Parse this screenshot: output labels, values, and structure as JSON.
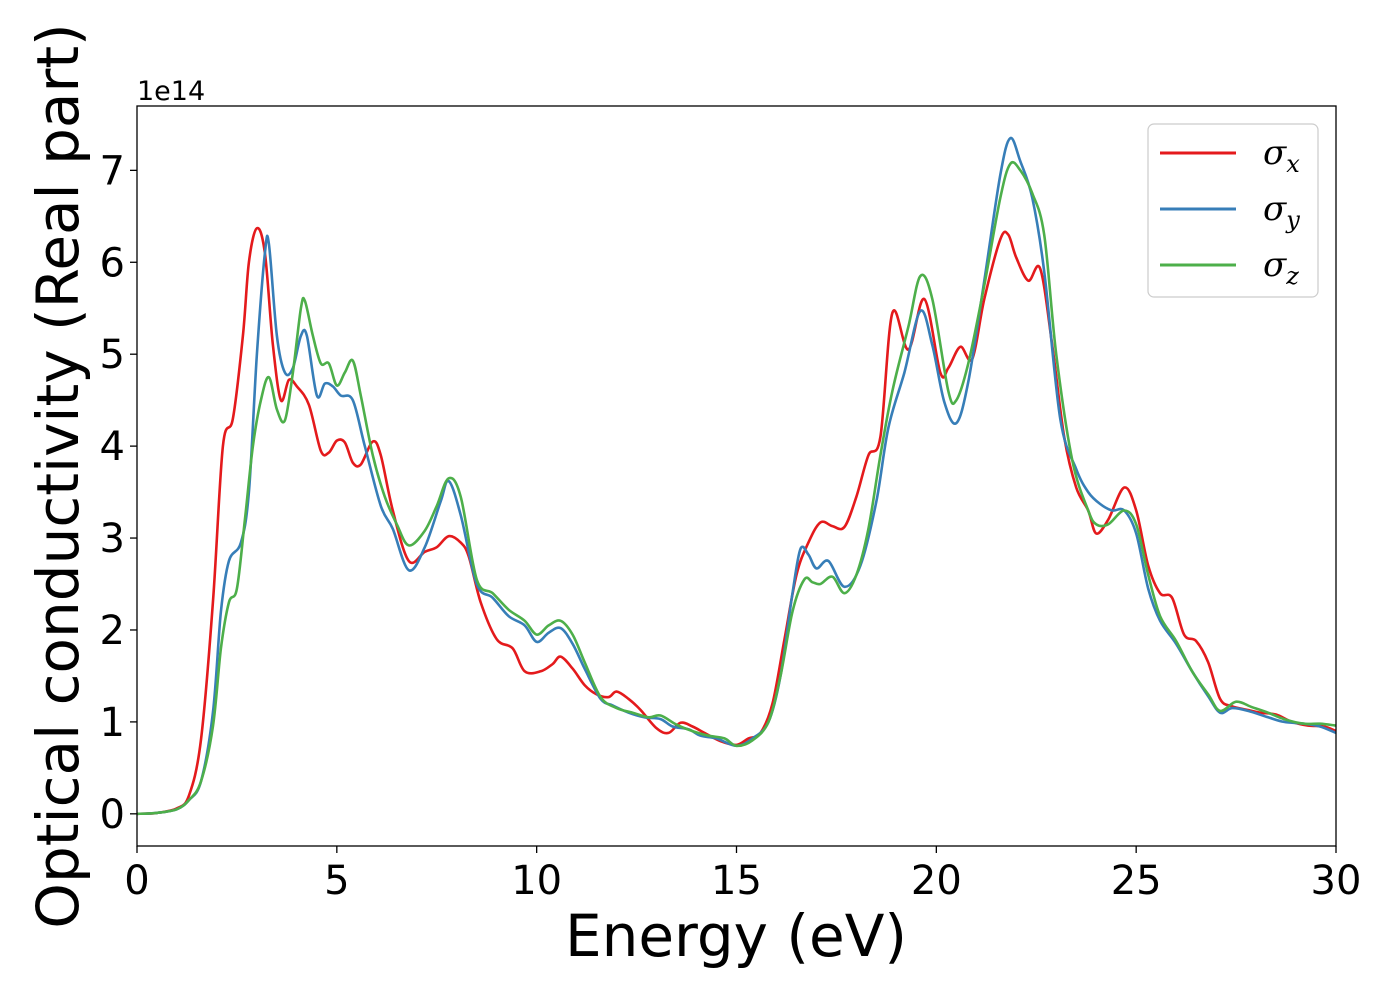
{
  "chart_data": {
    "type": "line",
    "xlabel": "Energy (eV)",
    "ylabel": "Optical conductivity (Real part)",
    "offset_text": "1e14",
    "xlim": [
      0,
      30
    ],
    "ylim": [
      -0.35,
      7.7
    ],
    "xticks": [
      0,
      5,
      10,
      15,
      20,
      25,
      30
    ],
    "xtick_labels": [
      "0",
      "5",
      "10",
      "15",
      "20",
      "25",
      "30"
    ],
    "yticks": [
      0,
      1,
      2,
      3,
      4,
      5,
      6,
      7
    ],
    "ytick_labels": [
      "0",
      "1",
      "2",
      "3",
      "4",
      "5",
      "6",
      "7"
    ],
    "grid": false,
    "legend_position": "top-right",
    "series": [
      {
        "name": "σx",
        "symbol": "σ",
        "subscript": "x",
        "color": "#e41a1c",
        "points": [
          [
            0,
            0
          ],
          [
            0.5,
            0.01
          ],
          [
            1,
            0.06
          ],
          [
            1.3,
            0.2
          ],
          [
            1.6,
            0.8
          ],
          [
            1.9,
            2.3
          ],
          [
            2.15,
            4.0
          ],
          [
            2.4,
            4.3
          ],
          [
            2.65,
            5.2
          ],
          [
            2.8,
            6.0
          ],
          [
            3.0,
            6.37
          ],
          [
            3.2,
            6.1
          ],
          [
            3.4,
            5.1
          ],
          [
            3.6,
            4.5
          ],
          [
            3.8,
            4.72
          ],
          [
            4.0,
            4.65
          ],
          [
            4.3,
            4.45
          ],
          [
            4.6,
            3.95
          ],
          [
            4.8,
            3.93
          ],
          [
            5.0,
            4.06
          ],
          [
            5.2,
            4.04
          ],
          [
            5.4,
            3.82
          ],
          [
            5.6,
            3.8
          ],
          [
            5.9,
            4.05
          ],
          [
            6.1,
            3.9
          ],
          [
            6.4,
            3.3
          ],
          [
            6.8,
            2.75
          ],
          [
            7.2,
            2.85
          ],
          [
            7.5,
            2.9
          ],
          [
            7.8,
            3.02
          ],
          [
            8.1,
            2.95
          ],
          [
            8.3,
            2.8
          ],
          [
            8.6,
            2.3
          ],
          [
            9.0,
            1.9
          ],
          [
            9.4,
            1.8
          ],
          [
            9.7,
            1.55
          ],
          [
            10.1,
            1.55
          ],
          [
            10.4,
            1.63
          ],
          [
            10.6,
            1.71
          ],
          [
            10.9,
            1.58
          ],
          [
            11.2,
            1.4
          ],
          [
            11.5,
            1.3
          ],
          [
            11.8,
            1.27
          ],
          [
            12.0,
            1.33
          ],
          [
            12.3,
            1.25
          ],
          [
            12.6,
            1.13
          ],
          [
            13.0,
            0.93
          ],
          [
            13.3,
            0.88
          ],
          [
            13.6,
            0.99
          ],
          [
            13.9,
            0.95
          ],
          [
            14.2,
            0.88
          ],
          [
            14.6,
            0.79
          ],
          [
            15.0,
            0.75
          ],
          [
            15.3,
            0.82
          ],
          [
            15.6,
            0.88
          ],
          [
            15.9,
            1.2
          ],
          [
            16.2,
            1.9
          ],
          [
            16.5,
            2.6
          ],
          [
            16.8,
            2.95
          ],
          [
            17.1,
            3.17
          ],
          [
            17.4,
            3.13
          ],
          [
            17.7,
            3.12
          ],
          [
            18.0,
            3.45
          ],
          [
            18.3,
            3.9
          ],
          [
            18.6,
            4.1
          ],
          [
            18.9,
            5.45
          ],
          [
            19.3,
            5.05
          ],
          [
            19.7,
            5.6
          ],
          [
            20.1,
            4.8
          ],
          [
            20.3,
            4.85
          ],
          [
            20.6,
            5.08
          ],
          [
            20.9,
            4.95
          ],
          [
            21.2,
            5.6
          ],
          [
            21.6,
            6.25
          ],
          [
            21.8,
            6.3
          ],
          [
            22.0,
            6.05
          ],
          [
            22.3,
            5.8
          ],
          [
            22.6,
            5.93
          ],
          [
            22.9,
            5.1
          ],
          [
            23.2,
            4.1
          ],
          [
            23.5,
            3.55
          ],
          [
            23.8,
            3.3
          ],
          [
            24.0,
            3.05
          ],
          [
            24.3,
            3.2
          ],
          [
            24.7,
            3.55
          ],
          [
            25.0,
            3.3
          ],
          [
            25.3,
            2.7
          ],
          [
            25.6,
            2.4
          ],
          [
            25.9,
            2.35
          ],
          [
            26.2,
            1.95
          ],
          [
            26.5,
            1.88
          ],
          [
            26.8,
            1.65
          ],
          [
            27.1,
            1.25
          ],
          [
            27.4,
            1.17
          ],
          [
            27.8,
            1.13
          ],
          [
            28.1,
            1.1
          ],
          [
            28.5,
            1.08
          ],
          [
            28.9,
            1.0
          ],
          [
            29.3,
            0.96
          ],
          [
            29.7,
            0.95
          ],
          [
            30.0,
            0.9
          ]
        ]
      },
      {
        "name": "σy",
        "symbol": "σ",
        "subscript": "y",
        "color": "#377eb8",
        "points": [
          [
            0,
            0
          ],
          [
            0.5,
            0.01
          ],
          [
            1,
            0.05
          ],
          [
            1.3,
            0.15
          ],
          [
            1.6,
            0.35
          ],
          [
            1.9,
            1.1
          ],
          [
            2.1,
            2.2
          ],
          [
            2.3,
            2.75
          ],
          [
            2.6,
            2.95
          ],
          [
            2.8,
            3.5
          ],
          [
            3.0,
            5.0
          ],
          [
            3.2,
            6.1
          ],
          [
            3.3,
            6.2
          ],
          [
            3.5,
            5.2
          ],
          [
            3.7,
            4.8
          ],
          [
            3.9,
            4.85
          ],
          [
            4.1,
            5.2
          ],
          [
            4.25,
            5.2
          ],
          [
            4.5,
            4.55
          ],
          [
            4.7,
            4.68
          ],
          [
            4.9,
            4.65
          ],
          [
            5.1,
            4.55
          ],
          [
            5.4,
            4.5
          ],
          [
            5.7,
            4.0
          ],
          [
            6.1,
            3.35
          ],
          [
            6.4,
            3.1
          ],
          [
            6.8,
            2.65
          ],
          [
            7.2,
            2.9
          ],
          [
            7.6,
            3.4
          ],
          [
            7.8,
            3.62
          ],
          [
            8.1,
            3.25
          ],
          [
            8.5,
            2.5
          ],
          [
            8.9,
            2.35
          ],
          [
            9.3,
            2.15
          ],
          [
            9.7,
            2.05
          ],
          [
            10.0,
            1.87
          ],
          [
            10.3,
            1.97
          ],
          [
            10.6,
            2.02
          ],
          [
            10.9,
            1.85
          ],
          [
            11.2,
            1.58
          ],
          [
            11.6,
            1.25
          ],
          [
            11.9,
            1.18
          ],
          [
            12.3,
            1.1
          ],
          [
            12.7,
            1.05
          ],
          [
            13.1,
            1.03
          ],
          [
            13.4,
            0.95
          ],
          [
            13.8,
            0.92
          ],
          [
            14.1,
            0.85
          ],
          [
            14.5,
            0.82
          ],
          [
            15.0,
            0.74
          ],
          [
            15.4,
            0.82
          ],
          [
            15.8,
            1.0
          ],
          [
            16.1,
            1.5
          ],
          [
            16.4,
            2.4
          ],
          [
            16.6,
            2.88
          ],
          [
            16.8,
            2.82
          ],
          [
            17.0,
            2.67
          ],
          [
            17.3,
            2.75
          ],
          [
            17.7,
            2.47
          ],
          [
            18.1,
            2.7
          ],
          [
            18.5,
            3.4
          ],
          [
            18.8,
            4.2
          ],
          [
            19.2,
            4.8
          ],
          [
            19.6,
            5.47
          ],
          [
            19.9,
            5.1
          ],
          [
            20.2,
            4.48
          ],
          [
            20.5,
            4.25
          ],
          [
            20.8,
            4.7
          ],
          [
            21.2,
            5.8
          ],
          [
            21.6,
            6.95
          ],
          [
            21.85,
            7.35
          ],
          [
            22.1,
            7.1
          ],
          [
            22.4,
            6.7
          ],
          [
            22.7,
            5.9
          ],
          [
            23.1,
            4.3
          ],
          [
            23.5,
            3.75
          ],
          [
            23.8,
            3.5
          ],
          [
            24.1,
            3.37
          ],
          [
            24.4,
            3.3
          ],
          [
            24.7,
            3.3
          ],
          [
            25.0,
            3.05
          ],
          [
            25.3,
            2.45
          ],
          [
            25.6,
            2.1
          ],
          [
            26.0,
            1.85
          ],
          [
            26.4,
            1.55
          ],
          [
            26.8,
            1.28
          ],
          [
            27.1,
            1.1
          ],
          [
            27.4,
            1.15
          ],
          [
            27.8,
            1.12
          ],
          [
            28.3,
            1.05
          ],
          [
            28.7,
            1.0
          ],
          [
            29.2,
            0.98
          ],
          [
            29.6,
            0.95
          ],
          [
            30.0,
            0.88
          ]
        ]
      },
      {
        "name": "σz",
        "symbol": "σ",
        "subscript": "z",
        "color": "#4daf4a",
        "points": [
          [
            0,
            0
          ],
          [
            0.5,
            0.01
          ],
          [
            1,
            0.05
          ],
          [
            1.3,
            0.15
          ],
          [
            1.6,
            0.35
          ],
          [
            1.9,
            0.95
          ],
          [
            2.1,
            1.8
          ],
          [
            2.3,
            2.3
          ],
          [
            2.5,
            2.45
          ],
          [
            2.7,
            3.2
          ],
          [
            2.9,
            4.0
          ],
          [
            3.1,
            4.5
          ],
          [
            3.3,
            4.75
          ],
          [
            3.5,
            4.4
          ],
          [
            3.7,
            4.28
          ],
          [
            3.9,
            4.8
          ],
          [
            4.1,
            5.5
          ],
          [
            4.2,
            5.58
          ],
          [
            4.4,
            5.2
          ],
          [
            4.6,
            4.9
          ],
          [
            4.8,
            4.9
          ],
          [
            5.0,
            4.66
          ],
          [
            5.2,
            4.8
          ],
          [
            5.4,
            4.93
          ],
          [
            5.6,
            4.55
          ],
          [
            5.9,
            3.9
          ],
          [
            6.2,
            3.45
          ],
          [
            6.5,
            3.15
          ],
          [
            6.8,
            2.92
          ],
          [
            7.2,
            3.08
          ],
          [
            7.5,
            3.35
          ],
          [
            7.8,
            3.65
          ],
          [
            8.1,
            3.45
          ],
          [
            8.5,
            2.55
          ],
          [
            8.9,
            2.4
          ],
          [
            9.3,
            2.22
          ],
          [
            9.7,
            2.1
          ],
          [
            10.0,
            1.95
          ],
          [
            10.3,
            2.05
          ],
          [
            10.6,
            2.1
          ],
          [
            10.9,
            1.95
          ],
          [
            11.2,
            1.65
          ],
          [
            11.6,
            1.27
          ],
          [
            12.0,
            1.15
          ],
          [
            12.4,
            1.1
          ],
          [
            12.8,
            1.05
          ],
          [
            13.1,
            1.07
          ],
          [
            13.5,
            0.97
          ],
          [
            13.9,
            0.9
          ],
          [
            14.3,
            0.85
          ],
          [
            14.7,
            0.82
          ],
          [
            15.0,
            0.74
          ],
          [
            15.4,
            0.8
          ],
          [
            15.8,
            1.0
          ],
          [
            16.1,
            1.5
          ],
          [
            16.4,
            2.2
          ],
          [
            16.7,
            2.55
          ],
          [
            16.9,
            2.52
          ],
          [
            17.1,
            2.5
          ],
          [
            17.4,
            2.58
          ],
          [
            17.7,
            2.4
          ],
          [
            18.0,
            2.6
          ],
          [
            18.3,
            3.1
          ],
          [
            18.6,
            3.9
          ],
          [
            18.9,
            4.6
          ],
          [
            19.3,
            5.3
          ],
          [
            19.6,
            5.85
          ],
          [
            19.9,
            5.6
          ],
          [
            20.3,
            4.6
          ],
          [
            20.5,
            4.5
          ],
          [
            20.8,
            4.9
          ],
          [
            21.2,
            5.75
          ],
          [
            21.6,
            6.7
          ],
          [
            21.85,
            7.07
          ],
          [
            22.1,
            7.0
          ],
          [
            22.4,
            6.75
          ],
          [
            22.7,
            6.3
          ],
          [
            23.0,
            5.0
          ],
          [
            23.4,
            3.85
          ],
          [
            23.8,
            3.3
          ],
          [
            24.0,
            3.15
          ],
          [
            24.3,
            3.15
          ],
          [
            24.7,
            3.3
          ],
          [
            25.0,
            3.15
          ],
          [
            25.3,
            2.6
          ],
          [
            25.6,
            2.15
          ],
          [
            26.0,
            1.88
          ],
          [
            26.4,
            1.55
          ],
          [
            26.8,
            1.3
          ],
          [
            27.1,
            1.12
          ],
          [
            27.5,
            1.22
          ],
          [
            27.9,
            1.16
          ],
          [
            28.3,
            1.1
          ],
          [
            28.7,
            1.03
          ],
          [
            29.2,
            0.98
          ],
          [
            29.6,
            0.98
          ],
          [
            30.0,
            0.96
          ]
        ]
      }
    ]
  }
}
